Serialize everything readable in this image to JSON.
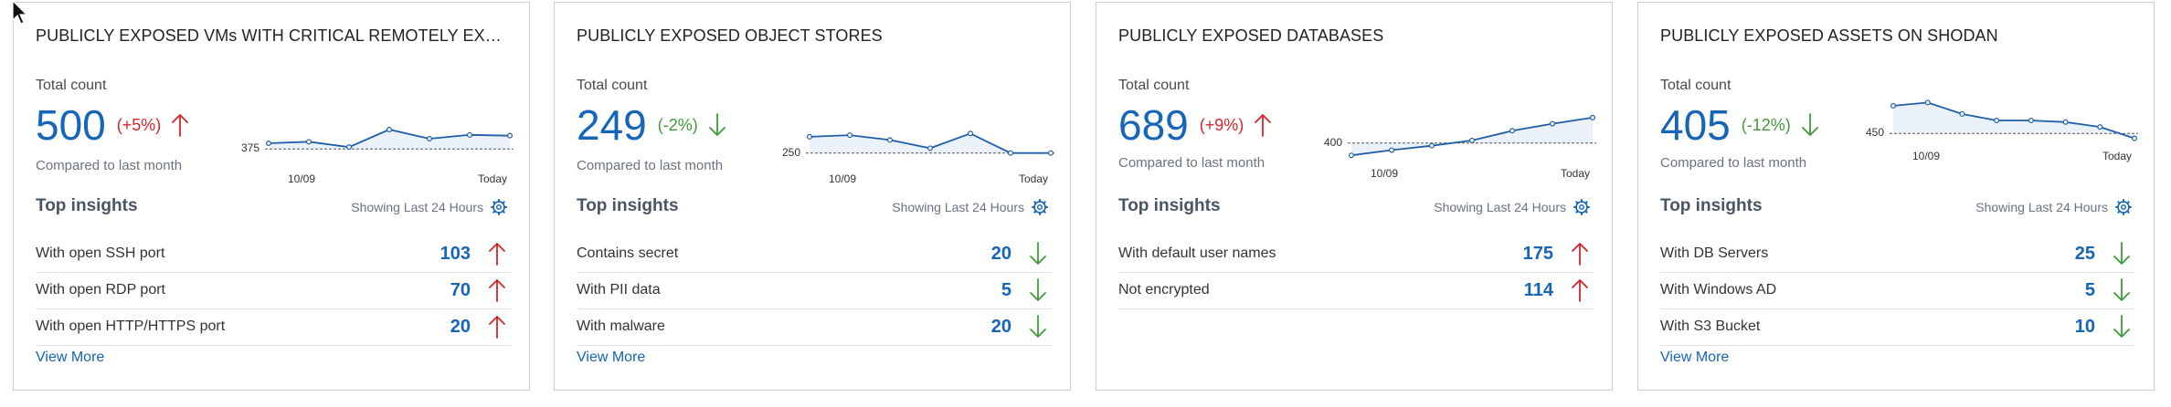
{
  "common": {
    "total_label": "Total count",
    "compared_label": "Compared to last month",
    "insights_title": "Top insights",
    "showing_label": "Showing Last 24 Hours",
    "view_more_label": "View More",
    "x_start": "10/09",
    "x_end": "Today"
  },
  "colors": {
    "blue": "#1565b8",
    "up": "#d8232a",
    "down": "#3f9b3a"
  },
  "cards": [
    {
      "title": "PUBLICLY EXPOSED VMs WITH CRITICAL REMOTELY EXPLOITABLE VULNERABILITIES",
      "count": "500",
      "change": "(+5%)",
      "direction": "up",
      "reference": 375,
      "reference_label": "375",
      "trend": [
        390,
        394,
        380,
        426,
        402,
        412,
        410
      ],
      "trend_range": [
        330,
        450
      ],
      "show_view_more": true,
      "insights": [
        {
          "label": "With open SSH port",
          "value": "103",
          "direction": "up"
        },
        {
          "label": "With open RDP port",
          "value": "70",
          "direction": "up"
        },
        {
          "label": "With open HTTP/HTTPS port",
          "value": "20",
          "direction": "up"
        }
      ]
    },
    {
      "title": "PUBLICLY EXPOSED OBJECT STORES",
      "count": "249",
      "change": "(-2%)",
      "direction": "down",
      "reference": 250,
      "reference_label": "250",
      "trend": [
        300,
        305,
        290,
        265,
        310,
        250,
        250
      ],
      "trend_range": [
        210,
        350
      ],
      "show_view_more": true,
      "insights": [
        {
          "label": "Contains secret",
          "value": "20",
          "direction": "down"
        },
        {
          "label": "With PII data",
          "value": "5",
          "direction": "down"
        },
        {
          "label": "With malware",
          "value": "20",
          "direction": "down"
        }
      ]
    },
    {
      "title": "PUBLICLY EXPOSED DATABASES",
      "count": "689",
      "change": "(+9%)",
      "direction": "up",
      "reference": 400,
      "reference_label": "400",
      "trend": [
        330,
        360,
        385,
        415,
        470,
        510,
        545
      ],
      "trend_range": [
        300,
        560
      ],
      "show_view_more": false,
      "insights": [
        {
          "label": "With default user names",
          "value": "175",
          "direction": "up"
        },
        {
          "label": "Not encrypted",
          "value": "114",
          "direction": "up"
        }
      ]
    },
    {
      "title": "PUBLICLY EXPOSED ASSETS ON SHODAN",
      "count": "405",
      "change": "(-12%)",
      "direction": "down",
      "reference": 450,
      "reference_label": "450",
      "trend": [
        535,
        545,
        510,
        490,
        490,
        485,
        470,
        435
      ],
      "trend_range": [
        420,
        560
      ],
      "show_view_more": true,
      "insights": [
        {
          "label": "With DB Servers",
          "value": "25",
          "direction": "down"
        },
        {
          "label": "With Windows AD",
          "value": "5",
          "direction": "down"
        },
        {
          "label": "With S3 Bucket",
          "value": "10",
          "direction": "down"
        }
      ]
    }
  ]
}
